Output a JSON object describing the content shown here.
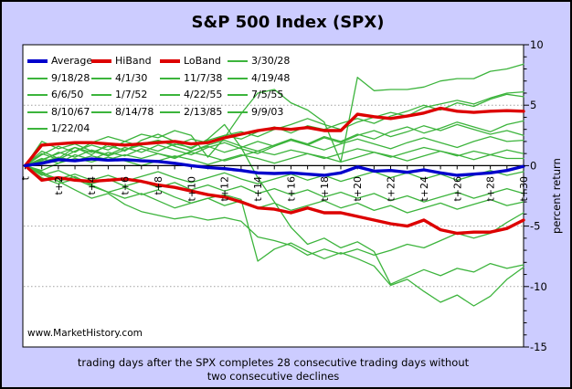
{
  "window": {
    "bg_color": "#CCCCFF",
    "plot_bg_color": "#FFFFFF",
    "border_color": "#000000"
  },
  "title": "S&P 500 Index (SPX)",
  "watermark": "www.MarketHistory.com",
  "caption": {
    "line1": "trading days after the SPX completes 28 consecutive trading days without",
    "line2": "two consecutive declines"
  },
  "y_axis": {
    "label": "percent return",
    "ticks": [
      10,
      5,
      0,
      -5,
      -10,
      -15
    ],
    "min": -15,
    "max": 10,
    "minor_step": 1
  },
  "x_axis": {
    "tick_labels": [
      "t",
      "t+2",
      "t+4",
      "t+6",
      "t+8",
      "t+10",
      "t+12",
      "t+14",
      "t+16",
      "t+18",
      "t+20",
      "t+22",
      "t+24",
      "t+26",
      "t+28",
      "t+30"
    ],
    "label_every_days": 2
  },
  "colors": {
    "average": "#0000CC",
    "band": "#DD0000",
    "date_line": "#3CB43C",
    "gridline": "#A0A0A0",
    "axis": "#000000"
  },
  "legend": {
    "position": "top-left-inside-plot",
    "items": [
      {
        "label": "Average",
        "color": "#0000CC",
        "thick": true
      },
      {
        "label": "HiBand",
        "color": "#DD0000",
        "thick": true
      },
      {
        "label": "LoBand",
        "color": "#DD0000",
        "thick": true
      },
      {
        "label": "3/30/28",
        "color": "#3CB43C",
        "thick": false
      },
      {
        "label": "9/18/28",
        "color": "#3CB43C",
        "thick": false
      },
      {
        "label": "4/1/30",
        "color": "#3CB43C",
        "thick": false
      },
      {
        "label": "11/7/38",
        "color": "#3CB43C",
        "thick": false
      },
      {
        "label": "4/19/48",
        "color": "#3CB43C",
        "thick": false
      },
      {
        "label": "6/6/50",
        "color": "#3CB43C",
        "thick": false
      },
      {
        "label": "1/7/52",
        "color": "#3CB43C",
        "thick": false
      },
      {
        "label": "4/22/55",
        "color": "#3CB43C",
        "thick": false
      },
      {
        "label": "7/5/55",
        "color": "#3CB43C",
        "thick": false
      },
      {
        "label": "8/10/67",
        "color": "#3CB43C",
        "thick": false
      },
      {
        "label": "8/14/78",
        "color": "#3CB43C",
        "thick": false
      },
      {
        "label": "2/13/85",
        "color": "#3CB43C",
        "thick": false
      },
      {
        "label": "9/9/03",
        "color": "#3CB43C",
        "thick": false
      },
      {
        "label": "1/22/04",
        "color": "#3CB43C",
        "thick": false
      }
    ]
  },
  "chart_data": {
    "type": "line",
    "title": "S&P 500 Index (SPX)",
    "xlabel": "trading days after the SPX completes 28 consecutive trading days without two consecutive declines",
    "ylabel": "percent return",
    "ylim": [
      -15,
      10
    ],
    "xlim_days": [
      0,
      30
    ],
    "gridlines_y": [
      5,
      -5,
      -10
    ],
    "grid_style": "dotted",
    "legend_position": "top-left",
    "x": [
      0,
      1,
      2,
      3,
      4,
      5,
      6,
      7,
      8,
      9,
      10,
      11,
      12,
      13,
      14,
      15,
      16,
      17,
      18,
      19,
      20,
      21,
      22,
      23,
      24,
      25,
      26,
      27,
      28,
      29,
      30
    ],
    "series": [
      {
        "name": "Average",
        "color": "#0000CC",
        "thick": true,
        "values": [
          0,
          0.2,
          0.5,
          0.4,
          0.55,
          0.45,
          0.5,
          0.4,
          0.35,
          0.2,
          0,
          -0.15,
          -0.25,
          -0.4,
          -0.6,
          -0.65,
          -0.6,
          -0.7,
          -0.8,
          -0.6,
          -0.1,
          -0.45,
          -0.4,
          -0.55,
          -0.35,
          -0.6,
          -0.8,
          -0.7,
          -0.6,
          -0.4,
          -0.05
        ]
      },
      {
        "name": "HiBand",
        "color": "#DD0000",
        "thick": true,
        "values": [
          0,
          1.7,
          1.8,
          1.9,
          1.9,
          1.8,
          1.7,
          1.8,
          1.9,
          2.0,
          1.8,
          1.9,
          2.3,
          2.6,
          2.9,
          3.1,
          3.0,
          3.15,
          2.9,
          2.9,
          4.25,
          4.05,
          3.9,
          4.1,
          4.35,
          4.75,
          4.5,
          4.4,
          4.5,
          4.55,
          4.5
        ]
      },
      {
        "name": "LoBand",
        "color": "#DD0000",
        "thick": true,
        "values": [
          0,
          -1.2,
          -1.0,
          -1.2,
          -1.3,
          -1.2,
          -1.1,
          -1.3,
          -1.6,
          -1.8,
          -2.1,
          -2.4,
          -2.6,
          -3.0,
          -3.5,
          -3.6,
          -3.9,
          -3.5,
          -3.9,
          -3.9,
          -4.2,
          -4.5,
          -4.8,
          -5.0,
          -4.5,
          -5.3,
          -5.6,
          -5.5,
          -5.5,
          -5.2,
          -4.5
        ]
      },
      {
        "name": "3/30/28",
        "color": "#3CB43C",
        "thick": false,
        "values": [
          0,
          0.9,
          1.6,
          1.1,
          1.9,
          2.4,
          2.0,
          2.6,
          2.3,
          2.9,
          2.5,
          0.7,
          2.3,
          4.3,
          6.0,
          6.3,
          5.2,
          4.6,
          3.6,
          0.3,
          7.3,
          6.2,
          6.3,
          6.3,
          6.5,
          7.0,
          7.2,
          7.2,
          7.8,
          8.0,
          8.4
        ]
      },
      {
        "name": "9/18/28",
        "color": "#3CB43C",
        "thick": false,
        "values": [
          0,
          0.5,
          1.0,
          1.5,
          1.1,
          1.6,
          1.3,
          1.8,
          2.1,
          1.7,
          2.2,
          1.9,
          2.5,
          2.8,
          2.4,
          3.0,
          3.4,
          3.9,
          3.4,
          3.0,
          3.6,
          4.0,
          4.4,
          4.1,
          4.8,
          5.1,
          5.4,
          5.1,
          5.6,
          6.0,
          6.1
        ]
      },
      {
        "name": "4/1/30",
        "color": "#3CB43C",
        "thick": false,
        "values": [
          0,
          1.2,
          0.6,
          1.5,
          0.9,
          1.8,
          1.2,
          2.1,
          2.6,
          2.0,
          1.4,
          2.2,
          3.4,
          1.5,
          -1.0,
          -3.0,
          -5.1,
          -6.5,
          -6.0,
          -6.8,
          -6.3,
          -7.1,
          -9.8,
          -9.2,
          -8.6,
          -9.1,
          -8.5,
          -8.8,
          -8.1,
          -8.5,
          -8.2
        ]
      },
      {
        "name": "11/7/38",
        "color": "#3CB43C",
        "thick": false,
        "values": [
          0,
          1.0,
          0.5,
          1.2,
          1.7,
          1.3,
          2.0,
          1.6,
          1.2,
          1.8,
          1.5,
          2.1,
          2.5,
          2.2,
          2.8,
          3.2,
          2.7,
          3.3,
          3.0,
          3.5,
          3.9,
          3.5,
          4.1,
          4.5,
          5.0,
          4.6,
          5.2,
          4.9,
          5.5,
          5.9,
          5.7
        ]
      },
      {
        "name": "4/19/48",
        "color": "#3CB43C",
        "thick": false,
        "values": [
          0,
          0.4,
          1.1,
          0.7,
          1.3,
          0.9,
          1.5,
          1.1,
          1.7,
          1.3,
          0.9,
          1.5,
          1.9,
          1.4,
          1.0,
          1.6,
          2.1,
          1.7,
          2.3,
          1.9,
          2.5,
          2.9,
          2.4,
          2.8,
          3.3,
          2.9,
          3.4,
          3.0,
          2.6,
          2.9,
          2.5
        ]
      },
      {
        "name": "6/6/50",
        "color": "#3CB43C",
        "thick": false,
        "values": [
          0,
          -0.8,
          -0.4,
          -1.0,
          -1.5,
          -1.1,
          -1.7,
          -1.3,
          -1.8,
          -1.4,
          -2.0,
          -1.6,
          -2.1,
          -1.7,
          -2.3,
          -1.9,
          -2.4,
          -2.0,
          -2.6,
          -2.2,
          -2.7,
          -2.3,
          -2.9,
          -2.5,
          -3.0,
          -2.6,
          -2.2,
          -2.7,
          -2.3,
          -1.9,
          -2.3
        ]
      },
      {
        "name": "1/7/52",
        "color": "#3CB43C",
        "thick": false,
        "values": [
          0,
          0.3,
          0.7,
          0.4,
          0.8,
          0.5,
          0.9,
          0.6,
          1.0,
          0.7,
          1.1,
          0.8,
          0.4,
          0.8,
          1.2,
          0.9,
          1.3,
          1.0,
          0.6,
          1.0,
          1.4,
          1.1,
          0.7,
          1.1,
          1.5,
          1.2,
          0.8,
          1.2,
          0.9,
          1.3,
          1.0
        ]
      },
      {
        "name": "4/22/55",
        "color": "#3CB43C",
        "thick": false,
        "values": [
          0,
          -0.4,
          0.2,
          0.6,
          0.3,
          0.7,
          0.4,
          0,
          0.4,
          0.8,
          0.5,
          0.1,
          0.5,
          0.9,
          0.6,
          0.2,
          0.6,
          1.0,
          0.7,
          0.3,
          0.7,
          1.1,
          0.8,
          0.4,
          0.8,
          1.2,
          0.9,
          0.5,
          0.9,
          0.6,
          0.6
        ]
      },
      {
        "name": "7/5/55",
        "color": "#3CB43C",
        "thick": false,
        "values": [
          0,
          0.6,
          0.2,
          0.9,
          0.5,
          1.1,
          0.8,
          1.4,
          1.0,
          0.6,
          1.2,
          1.6,
          1.1,
          1.5,
          2.0,
          1.6,
          2.2,
          1.8,
          2.4,
          2.0,
          2.6,
          2.2,
          2.8,
          3.2,
          2.7,
          3.1,
          3.6,
          3.2,
          2.8,
          3.4,
          3.7
        ]
      },
      {
        "name": "8/10/67",
        "color": "#3CB43C",
        "thick": false,
        "values": [
          0,
          -0.6,
          -1.1,
          -0.7,
          -1.2,
          -0.8,
          -1.3,
          -0.9,
          -0.5,
          -1.0,
          -1.4,
          -1.0,
          -0.6,
          -1.1,
          -1.5,
          -1.1,
          -0.7,
          -1.2,
          -0.8,
          -1.3,
          -0.9,
          -0.5,
          -1.0,
          -0.6,
          -1.1,
          -0.7,
          -1.2,
          -0.8,
          -0.4,
          -0.8,
          -0.5
        ]
      },
      {
        "name": "8/14/78",
        "color": "#3CB43C",
        "thick": false,
        "values": [
          0,
          -1.0,
          -1.5,
          -1.1,
          -1.7,
          -2.2,
          -1.8,
          -2.4,
          -2.0,
          -2.6,
          -3.1,
          -2.7,
          -3.3,
          -2.9,
          -3.5,
          -3.1,
          -3.7,
          -3.3,
          -2.9,
          -3.5,
          -3.1,
          -3.7,
          -3.3,
          -3.9,
          -3.5,
          -3.1,
          -3.6,
          -3.2,
          -2.8,
          -3.3,
          -3.0
        ]
      },
      {
        "name": "2/13/85",
        "color": "#3CB43C",
        "thick": false,
        "values": [
          0,
          2.0,
          1.4,
          1.8,
          1.2,
          0.8,
          1.3,
          1.7,
          2.1,
          1.6,
          1.2,
          1.7,
          2.1,
          1.6,
          1.2,
          1.7,
          2.2,
          1.7,
          1.3,
          1.8,
          2.2,
          1.8,
          1.4,
          1.9,
          2.3,
          1.9,
          1.5,
          2.0,
          2.4,
          2.0,
          2.1
        ]
      },
      {
        "name": "9/9/03",
        "color": "#3CB43C",
        "thick": false,
        "values": [
          0,
          -0.5,
          -1.3,
          -2.0,
          -2.7,
          -2.3,
          -3.2,
          -3.8,
          -4.1,
          -4.4,
          -4.2,
          -4.5,
          -4.3,
          -4.6,
          -5.9,
          -6.2,
          -6.6,
          -7.4,
          -6.9,
          -7.3,
          -6.9,
          -7.4,
          -7.0,
          -6.5,
          -6.8,
          -6.2,
          -5.6,
          -6.0,
          -5.6,
          -4.7,
          -3.9
        ]
      },
      {
        "name": "1/22/04",
        "color": "#3CB43C",
        "thick": false,
        "values": [
          0,
          -0.7,
          -1.3,
          -0.9,
          -1.6,
          -2.2,
          -2.7,
          -2.3,
          -2.9,
          -3.5,
          -3.1,
          -2.7,
          -2.4,
          -2.8,
          -7.9,
          -6.9,
          -6.4,
          -7.1,
          -7.7,
          -7.2,
          -7.7,
          -8.3,
          -9.9,
          -9.4,
          -10.4,
          -11.3,
          -10.7,
          -11.6,
          -10.8,
          -9.4,
          -8.4
        ]
      }
    ]
  }
}
